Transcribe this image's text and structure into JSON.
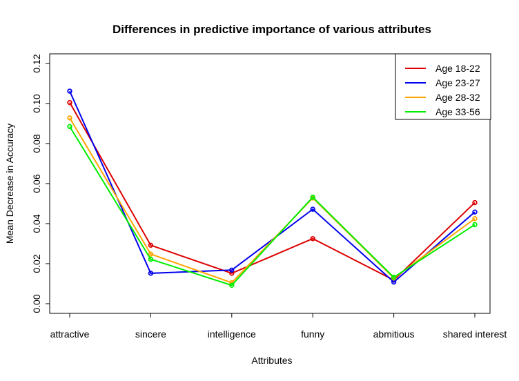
{
  "chart_data": {
    "type": "line",
    "title": "Differences in predictive importance of various attributes",
    "xlabel": "Attributes",
    "ylabel": "Mean Decrease in Accuracy",
    "categories": [
      "attractive",
      "sincere",
      "intelligence",
      "funny",
      "abmitious",
      "shared interest"
    ],
    "y_ticks": [
      "0.00",
      "0.02",
      "0.04",
      "0.06",
      "0.08",
      "0.10",
      "0.12"
    ],
    "ylim": [
      0,
      0.12
    ],
    "grid": false,
    "legend_position": "top-right",
    "series": [
      {
        "name": "Age 18-22",
        "color": "#dd0000",
        "values": [
          0.1005,
          0.0292,
          0.0152,
          0.0325,
          0.0118,
          0.0505
        ]
      },
      {
        "name": "Age 23-27",
        "color": "#0000ee",
        "values": [
          0.1062,
          0.0152,
          0.0168,
          0.0472,
          0.0108,
          0.0458
        ]
      },
      {
        "name": "Age 28-32",
        "color": "#ffa500",
        "values": [
          0.0928,
          0.0248,
          0.0105,
          0.0528,
          0.0128,
          0.0425
        ]
      },
      {
        "name": "Age 33-56",
        "color": "#00ee00",
        "values": [
          0.0885,
          0.0222,
          0.0092,
          0.0532,
          0.0132,
          0.0395
        ]
      }
    ]
  }
}
